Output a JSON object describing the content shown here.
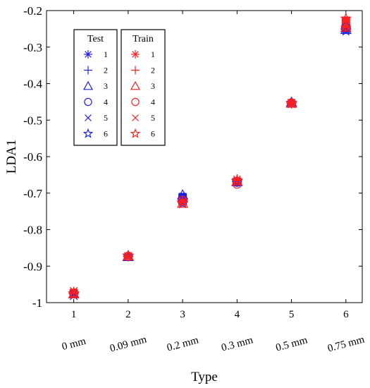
{
  "chart_data": {
    "type": "scatter",
    "xlabel": "Type",
    "ylabel": "LDA1",
    "xlim": [
      0.5,
      6.3
    ],
    "ylim": [
      -1,
      -0.2
    ],
    "x_ticks": [
      "1",
      "2",
      "3",
      "4",
      "5",
      "6"
    ],
    "y_ticks": [
      "-0.2",
      "-0.3",
      "-0.4",
      "-0.5",
      "-0.6",
      "-0.7",
      "-0.8",
      "-0.9",
      "-1"
    ],
    "categories": [
      "0 mm",
      "0.09 mm",
      "0.2 mm",
      "0.3 mm",
      "0.5 mm",
      "0.75 mm"
    ],
    "legend_position": "top-left",
    "groups": [
      {
        "title": "Test",
        "color": "#1f1fe6",
        "series": [
          {
            "name": "1",
            "marker": "asterisk",
            "x": [
              1,
              2,
              3,
              4,
              5,
              6
            ],
            "y": [
              -0.975,
              -0.873,
              -0.715,
              -0.668,
              -0.452,
              -0.248
            ]
          },
          {
            "name": "2",
            "marker": "plus",
            "x": [
              1,
              2,
              3,
              4,
              5,
              6
            ],
            "y": [
              -0.973,
              -0.872,
              -0.718,
              -0.667,
              -0.455,
              -0.245
            ]
          },
          {
            "name": "3",
            "marker": "triangle",
            "x": [
              1,
              2,
              3,
              4,
              5,
              6
            ],
            "y": [
              -0.976,
              -0.874,
              -0.705,
              -0.669,
              -0.451,
              -0.252
            ]
          },
          {
            "name": "4",
            "marker": "circle",
            "x": [
              1,
              2,
              3,
              4,
              5,
              6
            ],
            "y": [
              -0.974,
              -0.873,
              -0.72,
              -0.67,
              -0.453,
              -0.246
            ]
          },
          {
            "name": "5",
            "marker": "cross",
            "x": [
              1,
              2,
              3,
              4,
              5,
              6
            ],
            "y": [
              -0.982,
              -0.874,
              -0.722,
              -0.668,
              -0.455,
              -0.25
            ]
          },
          {
            "name": "6",
            "marker": "star",
            "x": [
              1,
              2,
              3,
              4,
              5,
              6
            ],
            "y": [
              -0.975,
              -0.872,
              -0.728,
              -0.667,
              -0.453,
              -0.255
            ]
          }
        ]
      },
      {
        "title": "Train",
        "color": "#ff2020",
        "series": [
          {
            "name": "1",
            "marker": "asterisk",
            "x": [
              1,
              2,
              3,
              4,
              5,
              6
            ],
            "y": [
              -0.972,
              -0.873,
              -0.722,
              -0.662,
              -0.452,
              -0.242
            ]
          },
          {
            "name": "2",
            "marker": "plus",
            "x": [
              1,
              2,
              3,
              4,
              5,
              6
            ],
            "y": [
              -0.97,
              -0.874,
              -0.726,
              -0.665,
              -0.455,
              -0.244
            ]
          },
          {
            "name": "3",
            "marker": "triangle",
            "x": [
              1,
              2,
              3,
              4,
              5,
              6
            ],
            "y": [
              -0.976,
              -0.872,
              -0.728,
              -0.667,
              -0.454,
              -0.246
            ]
          },
          {
            "name": "4",
            "marker": "circle",
            "x": [
              1,
              2,
              3,
              4,
              5,
              6
            ],
            "y": [
              -0.974,
              -0.873,
              -0.72,
              -0.675,
              -0.453,
              -0.242
            ]
          },
          {
            "name": "5",
            "marker": "cross",
            "x": [
              1,
              2,
              3,
              4,
              5,
              6
            ],
            "y": [
              -0.968,
              -0.872,
              -0.724,
              -0.668,
              -0.456,
              -0.244
            ]
          },
          {
            "name": "6",
            "marker": "star",
            "x": [
              1,
              2,
              3,
              4,
              5,
              6
            ],
            "y": [
              -0.975,
              -0.871,
              -0.725,
              -0.665,
              -0.454,
              -0.222
            ]
          }
        ]
      }
    ]
  }
}
